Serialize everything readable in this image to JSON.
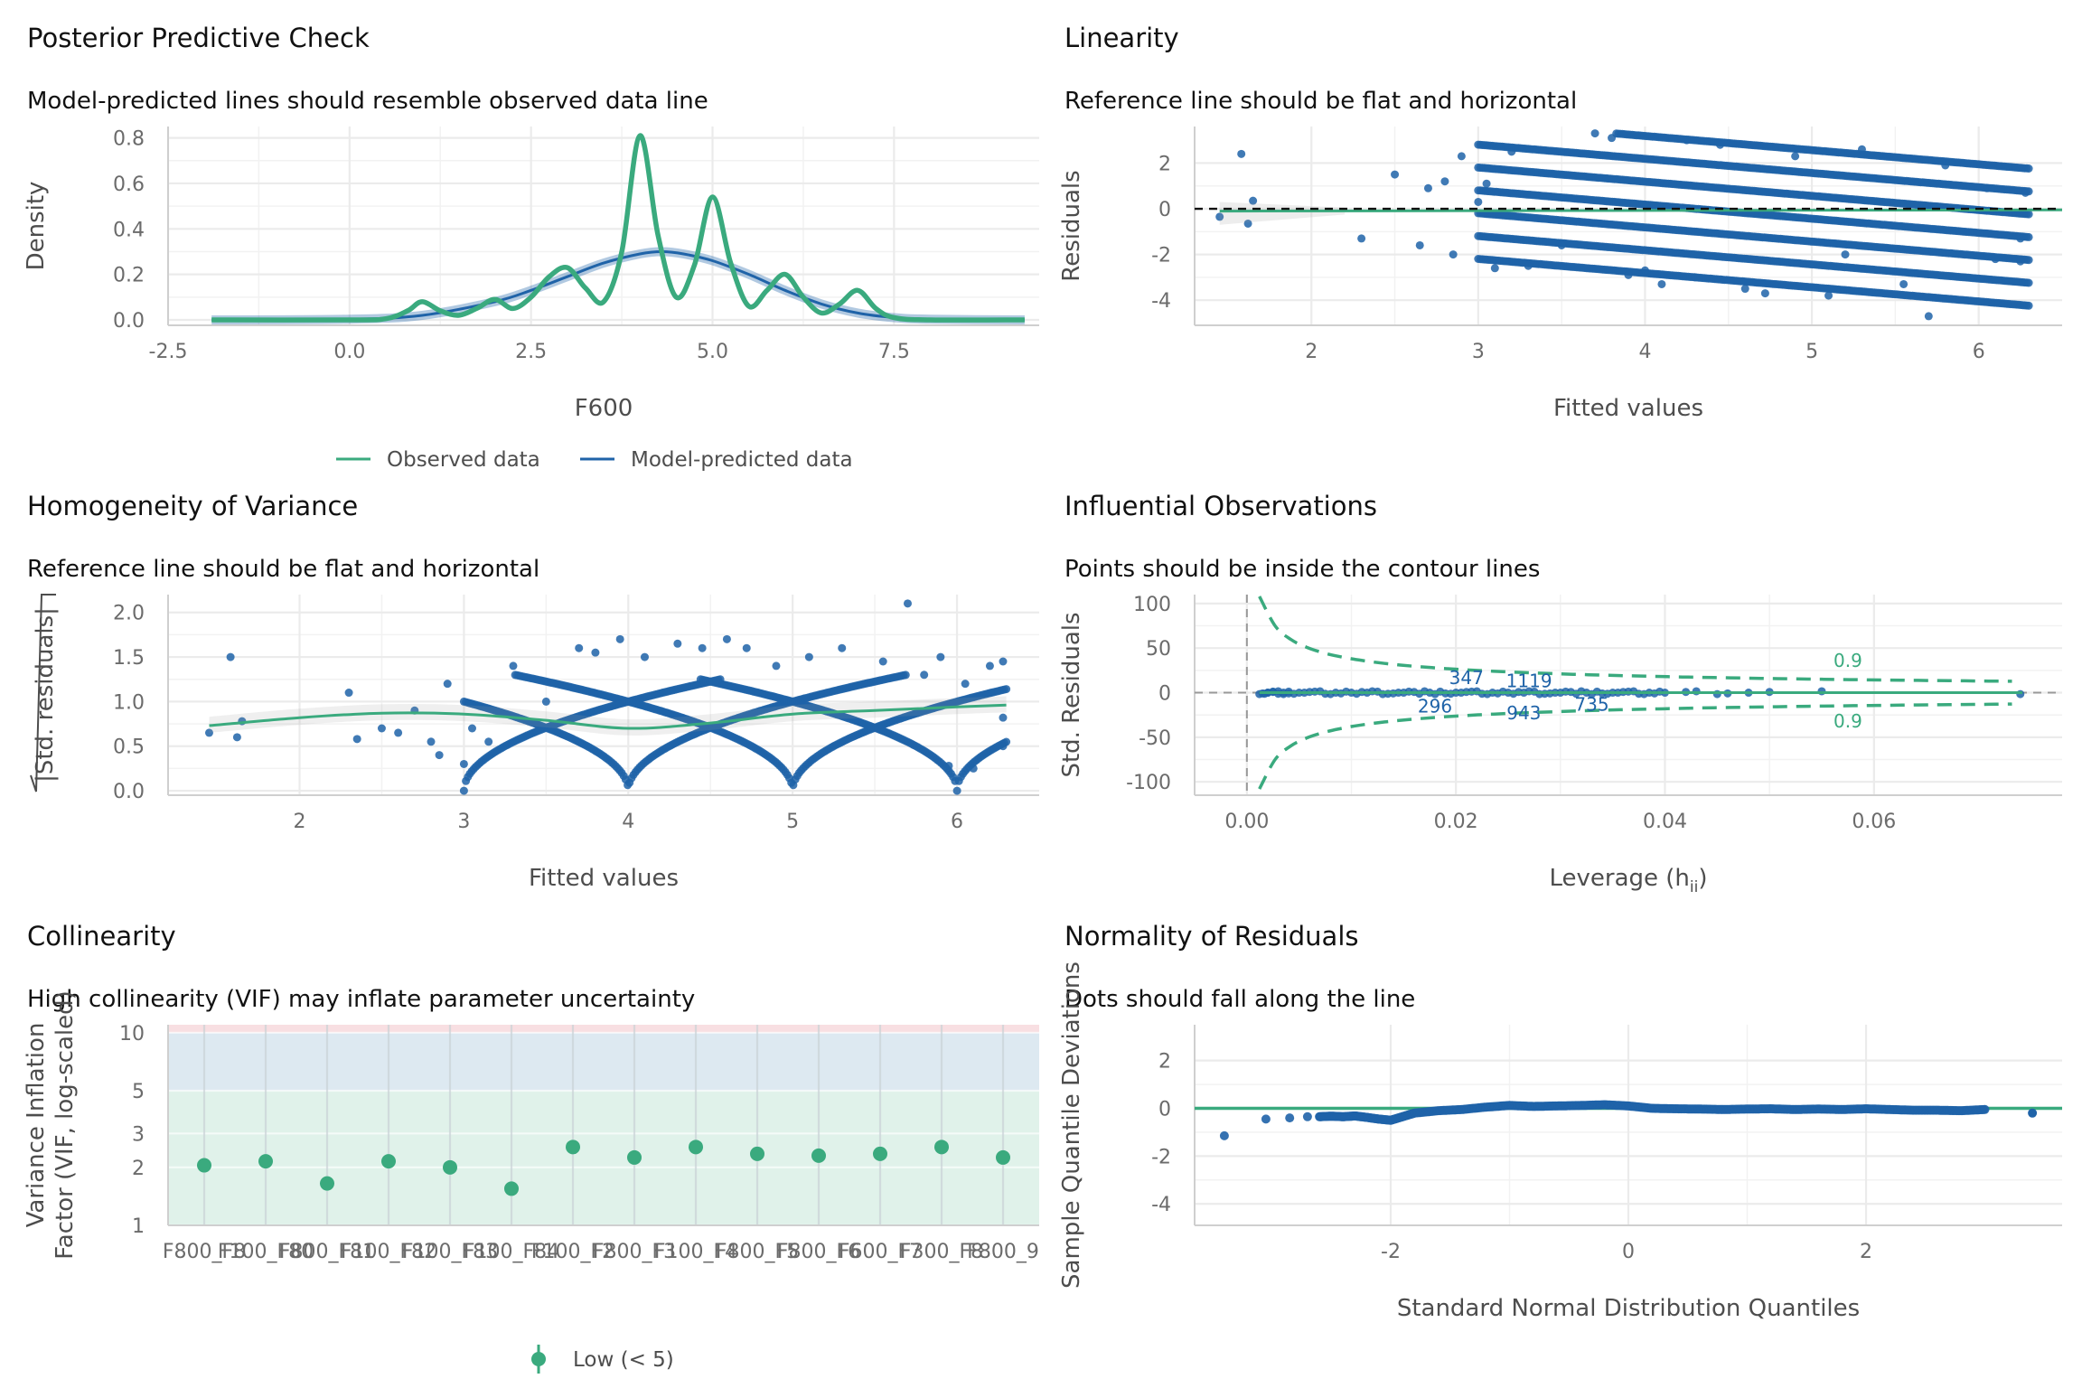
{
  "colors": {
    "observed": "#3aaa7e",
    "predicted": "#1f63a8",
    "points": "#1f63a8",
    "grid": "#ebebeb",
    "low_zone": "#e0f2ea",
    "moderate_zone": "#dde9f1",
    "high_zone": "#f8dfe2"
  },
  "chart_data": [
    {
      "id": "ppc",
      "type": "line",
      "title": "Posterior Predictive Check",
      "subtitle": "Model-predicted lines should resemble observed data line",
      "xlabel": "F600",
      "ylabel": "Density",
      "xlim": [
        -2.5,
        9.5
      ],
      "ylim": [
        0,
        0.85
      ],
      "xticks": [
        -2.5,
        0.0,
        2.5,
        5.0,
        7.5
      ],
      "xtick_labels": [
        "-2.5",
        "0.0",
        "2.5",
        "5.0",
        "7.5"
      ],
      "yticks": [
        0.0,
        0.2,
        0.4,
        0.6,
        0.8
      ],
      "ytick_labels": [
        "0.0",
        "0.2",
        "0.4",
        "0.6",
        "0.8"
      ],
      "legend": [
        "Observed data",
        "Model-predicted data"
      ],
      "legend_position": "bottom",
      "series": [
        {
          "name": "Observed data",
          "x": [
            -1.9,
            0.0,
            0.5,
            0.8,
            1.0,
            1.25,
            1.5,
            1.75,
            2.0,
            2.25,
            2.5,
            2.75,
            3.0,
            3.25,
            3.5,
            3.75,
            4.0,
            4.25,
            4.5,
            4.75,
            5.0,
            5.25,
            5.5,
            5.75,
            6.0,
            6.25,
            6.5,
            6.75,
            7.0,
            7.25,
            7.5,
            8.0,
            9.3
          ],
          "y": [
            0.0,
            0.0,
            0.005,
            0.04,
            0.08,
            0.04,
            0.02,
            0.05,
            0.09,
            0.05,
            0.1,
            0.19,
            0.23,
            0.14,
            0.08,
            0.3,
            0.81,
            0.37,
            0.1,
            0.24,
            0.54,
            0.25,
            0.06,
            0.13,
            0.2,
            0.1,
            0.03,
            0.07,
            0.13,
            0.05,
            0.01,
            0.0,
            0.0
          ]
        },
        {
          "name": "Model-predicted data",
          "x": [
            -1.9,
            0.0,
            1.0,
            2.0,
            2.5,
            3.0,
            3.5,
            4.0,
            4.3,
            4.6,
            5.0,
            5.5,
            6.0,
            6.5,
            7.0,
            7.5,
            8.0,
            9.3
          ],
          "y": [
            0.0,
            0.003,
            0.02,
            0.08,
            0.13,
            0.19,
            0.25,
            0.29,
            0.3,
            0.29,
            0.26,
            0.2,
            0.13,
            0.07,
            0.03,
            0.01,
            0.003,
            0.0
          ]
        }
      ]
    },
    {
      "id": "linearity",
      "type": "scatter",
      "title": "Linearity",
      "subtitle": "Reference line should be flat and horizontal",
      "xlabel": "Fitted values",
      "ylabel": "Residuals",
      "xlim": [
        1.3,
        6.5
      ],
      "ylim": [
        -5.1,
        3.6
      ],
      "xticks": [
        2,
        3,
        4,
        5,
        6
      ],
      "xtick_labels": [
        "2",
        "3",
        "4",
        "5",
        "6"
      ],
      "yticks": [
        -4,
        -2,
        0,
        2
      ],
      "ytick_labels": [
        "-4",
        "-2",
        "0",
        "2"
      ],
      "reference_line": 0,
      "residual_bands": {
        "x_start": 3.0,
        "x_end": 6.3,
        "offsets": [
          -3,
          -2,
          -1,
          0,
          1,
          2,
          3
        ]
      },
      "points": [
        [
          1.45,
          -0.35
        ],
        [
          1.58,
          2.4
        ],
        [
          1.62,
          -0.65
        ],
        [
          1.65,
          0.35
        ],
        [
          2.3,
          -1.3
        ],
        [
          2.5,
          1.5
        ],
        [
          2.65,
          -1.6
        ],
        [
          2.7,
          0.9
        ],
        [
          2.8,
          1.2
        ],
        [
          2.85,
          -2.0
        ],
        [
          2.9,
          2.3
        ],
        [
          3.0,
          0.3
        ],
        [
          3.05,
          1.1
        ],
        [
          3.1,
          -2.6
        ],
        [
          3.2,
          2.5
        ],
        [
          3.3,
          -2.5
        ],
        [
          3.5,
          -1.6
        ],
        [
          3.7,
          3.3
        ],
        [
          3.8,
          3.1
        ],
        [
          3.9,
          -2.9
        ],
        [
          4.0,
          -2.7
        ],
        [
          4.1,
          -3.3
        ],
        [
          4.25,
          3.0
        ],
        [
          4.3,
          -3.0
        ],
        [
          4.45,
          2.8
        ],
        [
          4.6,
          -3.5
        ],
        [
          4.72,
          -3.7
        ],
        [
          4.9,
          2.3
        ],
        [
          5.1,
          -3.8
        ],
        [
          5.2,
          -2.0
        ],
        [
          5.3,
          2.6
        ],
        [
          5.55,
          -3.3
        ],
        [
          5.7,
          -4.7
        ],
        [
          5.8,
          1.9
        ],
        [
          6.05,
          0.9
        ],
        [
          6.1,
          -2.2
        ],
        [
          6.25,
          -2.3
        ],
        [
          6.25,
          -1.3
        ],
        [
          6.28,
          0.7
        ]
      ]
    },
    {
      "id": "homogeneity",
      "type": "scatter",
      "title": "Homogeneity of Variance",
      "subtitle": "Reference line should be flat and horizontal",
      "xlabel": "Fitted values",
      "ylabel": "|Std. residuals|",
      "xlim": [
        1.2,
        6.5
      ],
      "ylim": [
        -0.05,
        2.2
      ],
      "xticks": [
        2,
        3,
        4,
        5,
        6
      ],
      "xtick_labels": [
        "2",
        "3",
        "4",
        "5",
        "6"
      ],
      "yticks": [
        0.0,
        0.5,
        1.0,
        1.5,
        2.0
      ],
      "ytick_labels": [
        "0.0",
        "0.5",
        "1.0",
        "1.5",
        "2.0"
      ],
      "smooth": [
        [
          1.45,
          0.73
        ],
        [
          2.0,
          0.82
        ],
        [
          2.5,
          0.87
        ],
        [
          3.0,
          0.86
        ],
        [
          3.5,
          0.79
        ],
        [
          4.0,
          0.7
        ],
        [
          4.5,
          0.76
        ],
        [
          5.0,
          0.86
        ],
        [
          5.5,
          0.9
        ],
        [
          6.0,
          0.94
        ],
        [
          6.3,
          0.96
        ]
      ],
      "points": [
        [
          1.45,
          0.65
        ],
        [
          1.58,
          1.5
        ],
        [
          1.62,
          0.6
        ],
        [
          1.65,
          0.78
        ],
        [
          2.3,
          1.1
        ],
        [
          2.35,
          0.58
        ],
        [
          2.5,
          0.7
        ],
        [
          2.6,
          0.65
        ],
        [
          2.7,
          0.9
        ],
        [
          2.8,
          0.55
        ],
        [
          2.85,
          0.4
        ],
        [
          2.9,
          1.2
        ],
        [
          3.0,
          0.3
        ],
        [
          3.05,
          0.7
        ],
        [
          3.15,
          0.55
        ],
        [
          3.3,
          1.4
        ],
        [
          3.5,
          1.0
        ],
        [
          3.7,
          1.6
        ],
        [
          3.8,
          1.55
        ],
        [
          3.95,
          1.7
        ],
        [
          4.1,
          1.5
        ],
        [
          4.3,
          1.65
        ],
        [
          4.45,
          1.6
        ],
        [
          4.6,
          1.7
        ],
        [
          4.72,
          1.6
        ],
        [
          4.9,
          1.4
        ],
        [
          5.1,
          1.5
        ],
        [
          5.3,
          1.6
        ],
        [
          5.55,
          1.45
        ],
        [
          5.7,
          2.1
        ],
        [
          5.8,
          1.3
        ],
        [
          5.9,
          1.5
        ],
        [
          5.95,
          0.28
        ],
        [
          6.05,
          1.2
        ],
        [
          6.1,
          0.25
        ],
        [
          6.2,
          1.4
        ],
        [
          6.28,
          1.45
        ],
        [
          6.28,
          0.82
        ],
        [
          6.28,
          0.5
        ]
      ]
    },
    {
      "id": "influential",
      "type": "scatter",
      "title": "Influential Observations",
      "subtitle": "Points should be inside the contour lines",
      "xlabel": "Leverage (h",
      "xlabel_sub": "ii",
      "xlabel_end": ")",
      "ylabel": "Std. Residuals",
      "xlim": [
        -0.005,
        0.078
      ],
      "ylim": [
        -115,
        110
      ],
      "xticks": [
        0.0,
        0.02,
        0.04,
        0.06
      ],
      "xtick_labels": [
        "0.00",
        "0.02",
        "0.04",
        "0.06"
      ],
      "yticks": [
        -100,
        -50,
        0,
        50,
        100
      ],
      "ytick_labels": [
        "-100",
        "-50",
        "0",
        "50",
        "100"
      ],
      "contour_level": "0.9",
      "labels": [
        {
          "text": "347",
          "x": 0.021,
          "y": 17
        },
        {
          "text": "1119",
          "x": 0.027,
          "y": 13
        },
        {
          "text": "296",
          "x": 0.018,
          "y": -15
        },
        {
          "text": "943",
          "x": 0.0265,
          "y": -23
        },
        {
          "text": "735",
          "x": 0.033,
          "y": -13
        }
      ],
      "points_x": [
        0.0012,
        0.0015,
        0.002,
        0.0025,
        0.003,
        0.0035,
        0.004,
        0.005,
        0.006,
        0.007,
        0.008,
        0.009,
        0.01,
        0.011,
        0.012,
        0.013,
        0.014,
        0.015,
        0.016,
        0.017,
        0.018,
        0.019,
        0.02,
        0.021,
        0.022,
        0.023,
        0.024,
        0.025,
        0.026,
        0.027,
        0.028,
        0.029,
        0.03,
        0.031,
        0.032,
        0.033,
        0.034,
        0.035,
        0.036,
        0.037,
        0.038,
        0.039,
        0.04,
        0.042,
        0.043,
        0.045,
        0.046,
        0.048,
        0.05,
        0.055,
        0.074
      ]
    },
    {
      "id": "collinearity",
      "type": "scatter",
      "title": "Collinearity",
      "subtitle": "High collinearity (VIF) may inflate parameter uncertainty",
      "ylabel_lines": [
        "Variance Inflation",
        "Factor (VIF, log-scaled)"
      ],
      "log_y": true,
      "ylim": [
        1,
        11
      ],
      "yticks": [
        1,
        2,
        3,
        5,
        10
      ],
      "ytick_labels": [
        "1",
        "2",
        "3",
        "5",
        "10"
      ],
      "zones": {
        "low_max": 5,
        "moderate_max": 10
      },
      "categories": [
        "F800_F8",
        "F100_F80",
        "F800_F81",
        "F100_F82",
        "F100_F83",
        "F100_F84",
        "F100_F2",
        "F800_F3",
        "F100_F4",
        "F800_F5",
        "F800_F6",
        "F600_F7",
        "F300_F8",
        "F800_9"
      ],
      "values": [
        2.05,
        2.15,
        1.65,
        2.15,
        2.0,
        1.55,
        2.55,
        2.25,
        2.55,
        2.35,
        2.3,
        2.35,
        2.55,
        2.25
      ],
      "legend": [
        "Low (< 5)"
      ],
      "legend_position": "bottom"
    },
    {
      "id": "normality",
      "type": "scatter",
      "title": "Normality of Residuals",
      "subtitle": "Dots should fall along the line",
      "xlabel": "Standard Normal Distribution Quantiles",
      "ylabel": "Sample Quantile Deviations",
      "xlim": [
        -3.65,
        3.65
      ],
      "ylim": [
        -4.9,
        3.5
      ],
      "xticks": [
        -2,
        0,
        2
      ],
      "xtick_labels": [
        "-2",
        "0",
        "2"
      ],
      "yticks": [
        -4,
        -2,
        0,
        2
      ],
      "ytick_labels": [
        "-4",
        "-2",
        "0",
        "2"
      ],
      "reference_line": 0,
      "points": [
        [
          -3.4,
          -1.15
        ],
        [
          -3.05,
          -0.45
        ],
        [
          -2.85,
          -0.4
        ],
        [
          -2.7,
          -0.35
        ],
        [
          -2.6,
          -0.35
        ],
        [
          -2.5,
          -0.33
        ],
        [
          -2.4,
          -0.35
        ],
        [
          -2.3,
          -0.32
        ],
        [
          -2.2,
          -0.38
        ],
        [
          -2.1,
          -0.45
        ],
        [
          -2.0,
          -0.5
        ],
        [
          -1.9,
          -0.35
        ],
        [
          -1.8,
          -0.2
        ],
        [
          -1.6,
          -0.1
        ],
        [
          -1.4,
          -0.05
        ],
        [
          -1.2,
          0.05
        ],
        [
          -1.0,
          0.12
        ],
        [
          -0.8,
          0.08
        ],
        [
          -0.6,
          0.1
        ],
        [
          -0.4,
          0.12
        ],
        [
          -0.2,
          0.15
        ],
        [
          0.0,
          0.1
        ],
        [
          0.2,
          0.0
        ],
        [
          0.4,
          -0.02
        ],
        [
          0.6,
          -0.03
        ],
        [
          0.8,
          -0.05
        ],
        [
          1.0,
          -0.03
        ],
        [
          1.2,
          -0.02
        ],
        [
          1.4,
          -0.05
        ],
        [
          1.6,
          -0.03
        ],
        [
          1.8,
          -0.05
        ],
        [
          2.0,
          -0.02
        ],
        [
          2.2,
          -0.05
        ],
        [
          2.4,
          -0.08
        ],
        [
          2.6,
          -0.08
        ],
        [
          2.8,
          -0.1
        ],
        [
          3.0,
          -0.05
        ],
        [
          3.4,
          -0.2
        ]
      ]
    }
  ]
}
